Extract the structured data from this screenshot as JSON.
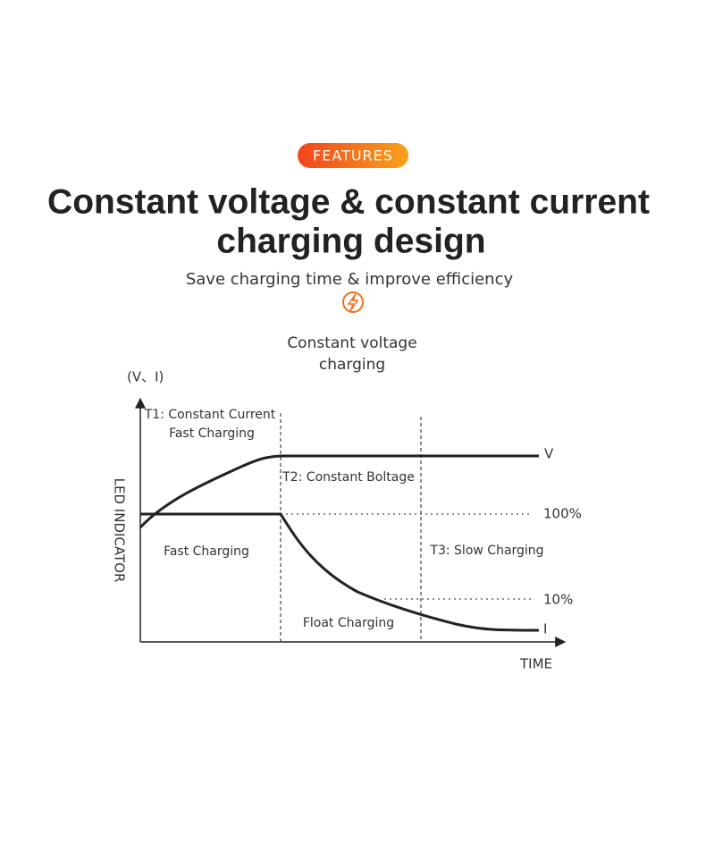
{
  "header": {
    "badge": "FEATURES",
    "title": [
      "Constant voltage & constant current",
      "charging design"
    ],
    "subtitle": "Save charging time & improve efficiency"
  },
  "diagram": {
    "heading": [
      "Constant voltage",
      "charging"
    ],
    "y_unit": "(V、I)",
    "y_axis_title": "LED INDICATOR",
    "x_axis_title": "TIME",
    "phases": {
      "t1": [
        "T1: Constant Current",
        "Fast Charging"
      ],
      "t2": "T2: Constant Boltage",
      "t3": "T3: Slow Charging"
    },
    "regions": {
      "fast": "Fast Charging",
      "float": "Float Charging"
    },
    "curves": {
      "voltage": "V",
      "current": "I"
    },
    "levels": {
      "full": "100%",
      "low": "10%"
    }
  }
}
